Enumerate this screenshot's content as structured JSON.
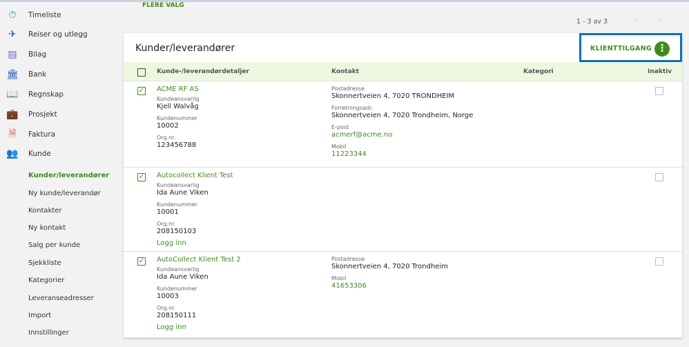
{
  "colors": {
    "accent": "#3f8a1f",
    "highlight": "#0a6fc2"
  },
  "sidebar": {
    "items": [
      {
        "label": "Timeliste",
        "icon": "stopwatch-icon",
        "color": "#2a8c8c"
      },
      {
        "label": "Reiser og utlegg",
        "icon": "airplane-icon",
        "color": "#2a5fb0"
      },
      {
        "label": "Bilag",
        "icon": "document-list-icon",
        "color": "#5a63c8"
      },
      {
        "label": "Bank",
        "icon": "bank-icon",
        "color": "#2a5fb0"
      },
      {
        "label": "Regnskap",
        "icon": "book-icon",
        "color": "#1f6a8a"
      },
      {
        "label": "Prosjekt",
        "icon": "briefcase-icon",
        "color": "#8a3fa8"
      },
      {
        "label": "Faktura",
        "icon": "invoice-icon",
        "color": "#d0403a"
      },
      {
        "label": "Kunde",
        "icon": "people-icon",
        "color": "#4a9a3a"
      }
    ],
    "subitems": [
      "Kunder/leverandører",
      "Ny kunde/leverandør",
      "Kontakter",
      "Ny kontakt",
      "Salg per kunde",
      "Sjekkliste",
      "Kategorier",
      "Leveranseadresser",
      "Import",
      "Innstillinger"
    ]
  },
  "top": {
    "more_options": "FLERE VALG",
    "pagination": "1 - 3 av 3"
  },
  "card": {
    "title": "Kunder/leverandører",
    "client_access": "KLIENTTILGANG",
    "columns": [
      "Kunde-/leverandørdetaljer",
      "Kontakt",
      "Kategori",
      "Inaktiv"
    ]
  },
  "labels": {
    "responsible": "Kundeansvarlig",
    "number": "Kundenummer",
    "org": "Org.nr.",
    "post": "Postadresse",
    "business": "Forretningsadr.",
    "email": "E-post",
    "mobile": "Mobil",
    "login": "Logg inn"
  },
  "rows": [
    {
      "name": "ACME RF AS",
      "responsible": "Kjell Walvåg",
      "number": "10002",
      "org": "123456788",
      "post": "Skonnertveien 4, 7020 TRONDHEIM",
      "business": "Skonnertveien 4, 7020 Trondheim, Norge",
      "email": "acmerf@acme.no",
      "mobile": "11223344"
    },
    {
      "name": "Autocollect Klient Test",
      "responsible": "Ida Aune Viken",
      "number": "10001",
      "org": "208150103"
    },
    {
      "name": "AutoCollect Klient Test 2",
      "responsible": "Ida Aune Viken",
      "number": "10003",
      "org": "208150111",
      "post": "Skonnertveien 4, 7020 Trondheim",
      "mobile": "41653306"
    }
  ]
}
